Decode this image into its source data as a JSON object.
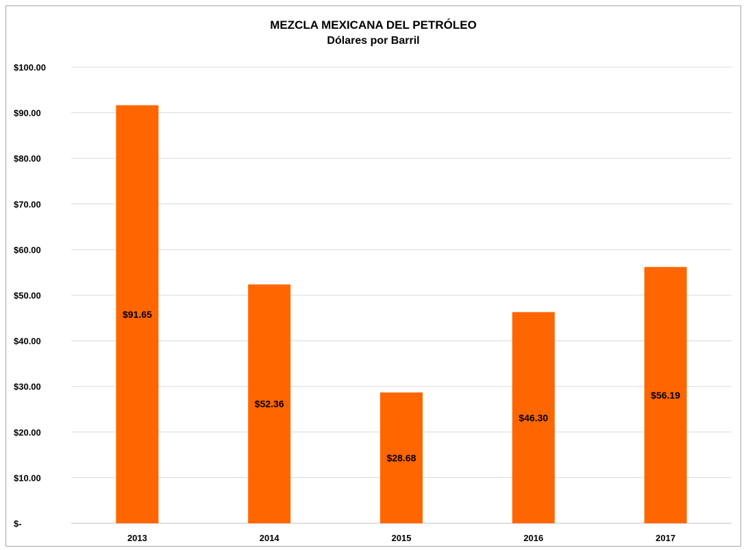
{
  "chart_data": {
    "type": "bar",
    "title": "MEZCLA MEXICANA DEL PETRÓLEO",
    "subtitle": "Dólares por Barril",
    "categories": [
      "2013",
      "2014",
      "2015",
      "2016",
      "2017"
    ],
    "values": [
      91.65,
      52.36,
      28.68,
      46.3,
      56.19
    ],
    "data_labels": [
      "$91.65",
      "$52.36",
      "$28.68",
      "$46.30",
      "$56.19"
    ],
    "y_ticks": [
      0,
      10,
      20,
      30,
      40,
      50,
      60,
      70,
      80,
      90,
      100
    ],
    "y_tick_labels": [
      "$-",
      "$10.00",
      "$20.00",
      "$30.00",
      "$40.00",
      "$50.00",
      "$60.00",
      "$70.00",
      "$80.00",
      "$90.00",
      "$100.00"
    ],
    "ylim": [
      0,
      100
    ],
    "xlabel": "",
    "ylabel": "",
    "grid": true,
    "legend": "none",
    "colors": {
      "bar": "#ff6600",
      "grid": "#d9d9d9",
      "axis": "#bfbfbf",
      "text": "#000000"
    }
  }
}
